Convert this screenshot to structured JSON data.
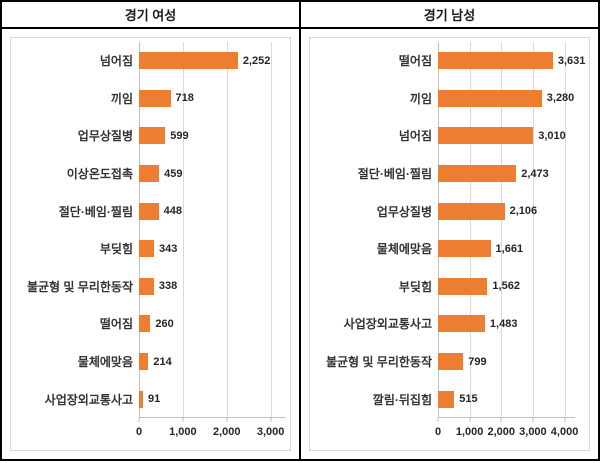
{
  "chart_data": [
    {
      "type": "bar",
      "orientation": "horizontal",
      "title": "경기 여성",
      "categories": [
        "넘어짐",
        "끼임",
        "업무상질병",
        "이상온도접촉",
        "절단·베임·찔림",
        "부딪힘",
        "불균형 및 무리한동작",
        "떨어짐",
        "물체에맞음",
        "사업장외교통사고"
      ],
      "values": [
        2252,
        718,
        599,
        459,
        448,
        343,
        338,
        260,
        214,
        91
      ],
      "value_labels": [
        "2,252",
        "718",
        "599",
        "459",
        "448",
        "343",
        "338",
        "260",
        "214",
        "91"
      ],
      "xticks": [
        0,
        1000,
        2000,
        3000
      ],
      "xtick_labels": [
        "0",
        "1,000",
        "2,000",
        "3,000"
      ],
      "xlim": [
        0,
        3350
      ],
      "grid": true,
      "legend": false,
      "bar_color": "#ED7D31"
    },
    {
      "type": "bar",
      "orientation": "horizontal",
      "title": "경기 남성",
      "categories": [
        "떨어짐",
        "끼임",
        "넘어짐",
        "절단·베임·찔림",
        "업무상질병",
        "물체에맞음",
        "부딪힘",
        "사업장외교통사고",
        "불균형 및 무리한동작",
        "깔림·뒤집힘"
      ],
      "values": [
        3631,
        3280,
        3010,
        2473,
        2106,
        1661,
        1562,
        1483,
        799,
        515
      ],
      "value_labels": [
        "3,631",
        "3,280",
        "3,010",
        "2,473",
        "2,106",
        "1,661",
        "1,562",
        "1,483",
        "799",
        "515"
      ],
      "xticks": [
        0,
        1000,
        2000,
        3000,
        4000
      ],
      "xtick_labels": [
        "0",
        "1,000",
        "2,000",
        "3,000",
        "4,000"
      ],
      "xlim": [
        0,
        4330
      ],
      "grid": true,
      "legend": false,
      "bar_color": "#ED7D31"
    }
  ],
  "colors": {
    "bar": "#ED7D31",
    "gridline": "#D9D9D9",
    "axis_line": "#BFBFBF",
    "label_text": "#333333",
    "value_text": "#262626",
    "outer_border": "#000000",
    "chart_box_border": "#D9D9D9",
    "background": "#FFFFFF"
  }
}
